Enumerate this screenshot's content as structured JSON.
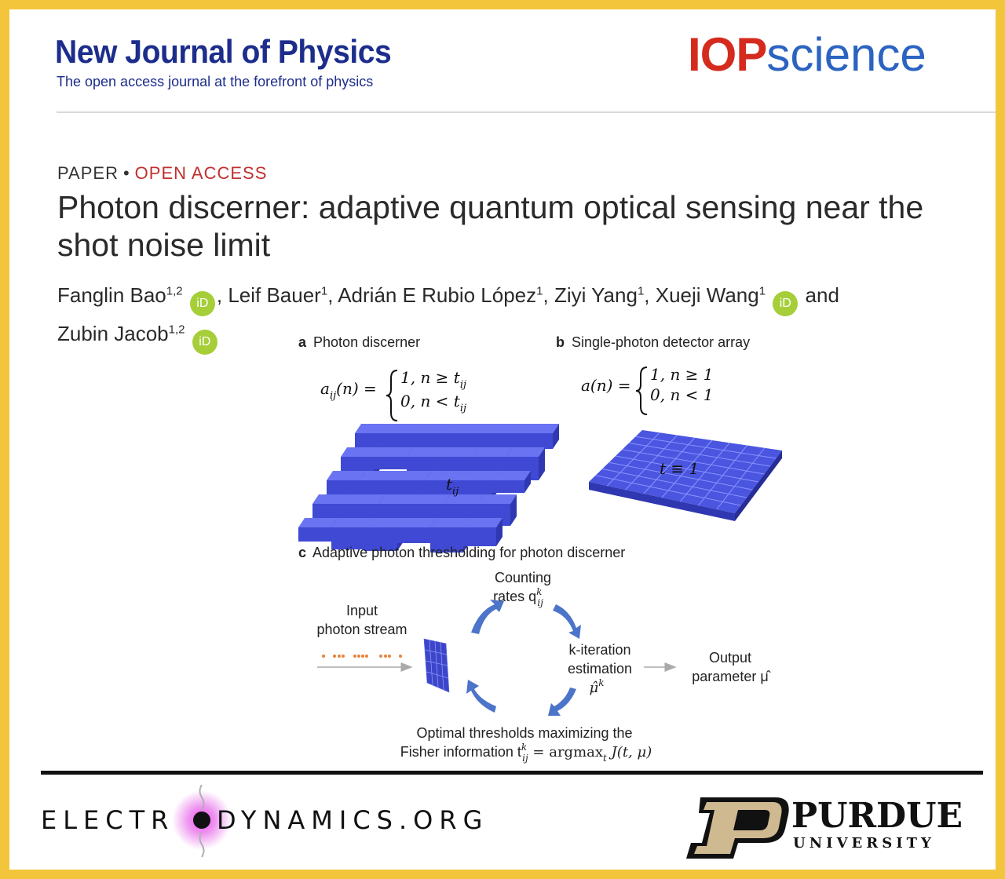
{
  "journal": {
    "name": "New Journal of Physics",
    "tagline": "The open access journal at the forefront of physics"
  },
  "publisher_logo": {
    "part1": "IOP",
    "part2": "science"
  },
  "article": {
    "type": "PAPER",
    "separator": "•",
    "access": "OPEN ACCESS",
    "title": "Photon discerner: adaptive quantum optical sensing near the shot noise limit",
    "authors": [
      {
        "name": "Fanglin Bao",
        "aff": "1,2",
        "orcid": true,
        "sep": ", "
      },
      {
        "name": "Leif Bauer",
        "aff": "1",
        "orcid": false,
        "sep": ", "
      },
      {
        "name": "Adrián E Rubio López",
        "aff": "1",
        "orcid": false,
        "sep": ", "
      },
      {
        "name": "Ziyi Yang",
        "aff": "1",
        "orcid": false,
        "sep": ", "
      },
      {
        "name": "Xueji Wang",
        "aff": "1",
        "orcid": true,
        "sep": " and"
      },
      {
        "name": "Zubin Jacob",
        "aff": "1,2",
        "orcid": true,
        "sep": ""
      }
    ],
    "orcid_label": "iD"
  },
  "figure": {
    "panel_a": {
      "letter": "a",
      "title": "Photon discerner",
      "eq_lhs": "a",
      "eq_lhs_sub": "ij",
      "eq_lhs_arg": "(n) =",
      "eq_case1": "1, n ≥ t",
      "eq_case2": "0, n < t",
      "eq_case_sub": "ij",
      "cube_label": "t",
      "cube_label_sub": "ij"
    },
    "panel_b": {
      "letter": "b",
      "title": "Single-photon detector array",
      "eq_lhs": "a(n) =",
      "eq_case1": "1, n ≥ 1",
      "eq_case2": "0, n < 1",
      "grid_label": "t ≡ 1"
    },
    "panel_c": {
      "letter": "c",
      "title": "Adaptive photon thresholding for photon discerner",
      "counting_line1": "Counting",
      "counting_line2": "rates q",
      "counting_sup": "k",
      "counting_sub": "ij",
      "input_line1": "Input",
      "input_line2": "photon stream",
      "kiter_line1": "k-iteration",
      "kiter_line2": "estimation",
      "kiter_symbol": "μ̂",
      "kiter_sup": "k",
      "output_line1": "Output",
      "output_line2": "parameter μ̂",
      "optimal_line1": "Optimal thresholds maximizing the",
      "optimal_line2_a": "Fisher information t",
      "optimal_sup": "k",
      "optimal_sub": "ij",
      "optimal_line2_b": " = argmax",
      "optimal_argsub": "t",
      "optimal_line2_c": " J(t, μ)"
    }
  },
  "footer": {
    "electrodynamics_left": "ELECTR",
    "electrodynamics_right": "DYNAMICS.ORG",
    "purdue_name": "PURDUE",
    "purdue_sub": "UNIVERSITY"
  },
  "colors": {
    "frame": "#f3c53b",
    "journal_blue": "#1c2d8c",
    "iop_red": "#d52b1e",
    "science_blue": "#2b63c1",
    "open_access_red": "#c0302e",
    "orcid_green": "#a6ce39",
    "cube_blue": "#4a55e0",
    "arrow_blue": "#4c74c9",
    "photon_orange": "#e8843c",
    "purdue_gold": "#cfb991"
  }
}
